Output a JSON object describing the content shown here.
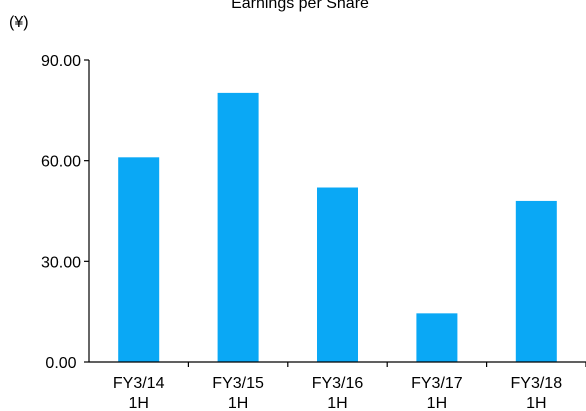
{
  "chart_data": {
    "type": "bar",
    "title": "Earnings per Share",
    "ylabel": "(¥)",
    "categories": [
      "FY3/14\n1H",
      "FY3/15\n1H",
      "FY3/16\n1H",
      "FY3/17\n1H",
      "FY3/18\n1H"
    ],
    "values": [
      61.0,
      80.2,
      52.0,
      14.5,
      48.0
    ],
    "yticks": [
      "0.00",
      "30.00",
      "60.00",
      "90.00"
    ],
    "ylim": [
      0,
      90
    ],
    "grid": false,
    "legend": "none",
    "bar_color": "#0AA8F5",
    "axis_color": "#000000"
  }
}
